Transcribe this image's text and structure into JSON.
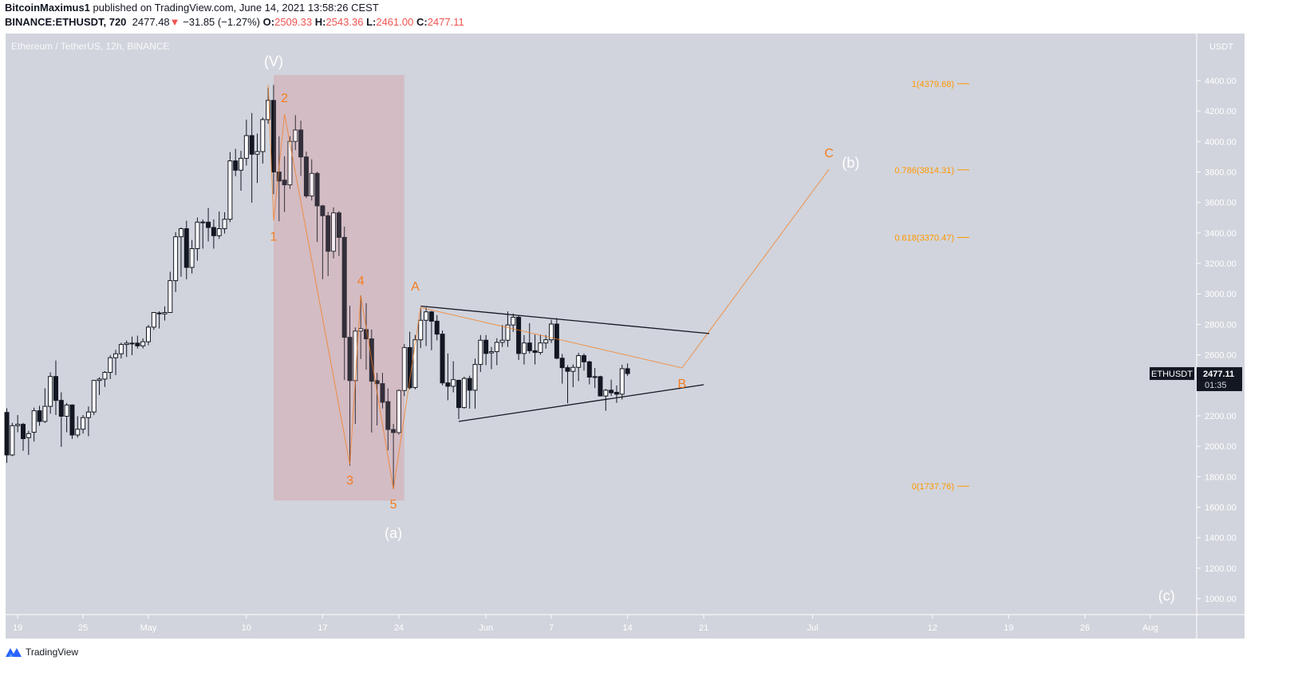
{
  "header": {
    "author": "BitcoinMaximus1",
    "published": "published on TradingView.com, June 14, 2021 13:58:26 CEST",
    "symbol": "BINANCE:ETHUSDT, 720",
    "last": "2477.48",
    "change": "−31.85 (−1.27%)",
    "direction_icon": "triangle-down-icon",
    "o_label": "O:",
    "o": "2509.33",
    "h_label": "H:",
    "h": "2543.36",
    "l_label": "L:",
    "l": "2461.00",
    "c_label": "C:",
    "c": "2477.11"
  },
  "footer": {
    "brand": "TradingView"
  },
  "colors": {
    "background": "#d1d4dc",
    "up_candle": "#ffffff",
    "down_candle": "#131722",
    "wave": "#f57c1f",
    "fib": "#ff9800",
    "box": "#d6c3c9",
    "axis_text": "#ffffff"
  },
  "chart_data": {
    "type": "candlestick",
    "title": "Ethereum / TetherUS, 12h, BINANCE",
    "interval": "12h",
    "y_unit": "USDT",
    "ylim": [
      850,
      4650
    ],
    "grid": false,
    "y_ticks": [
      "4400.00",
      "4200.00",
      "4000.00",
      "3800.00",
      "3600.00",
      "3400.00",
      "3200.00",
      "3000.00",
      "2800.00",
      "2600.00",
      "2200.00",
      "2000.00",
      "1800.00",
      "1600.00",
      "1400.00",
      "1200.00",
      "1000.00"
    ],
    "x_ticks": [
      {
        "label": "19",
        "date": "2021-04-19"
      },
      {
        "label": "25",
        "date": "2021-04-25"
      },
      {
        "label": "May",
        "date": "2021-05-01"
      },
      {
        "label": "10",
        "date": "2021-05-10"
      },
      {
        "label": "17",
        "date": "2021-05-17"
      },
      {
        "label": "24",
        "date": "2021-05-24"
      },
      {
        "label": "Jun",
        "date": "2021-06-01"
      },
      {
        "label": "7",
        "date": "2021-06-07"
      },
      {
        "label": "14",
        "date": "2021-06-14"
      },
      {
        "label": "21",
        "date": "2021-06-21"
      },
      {
        "label": "Jul",
        "date": "2021-07-01"
      },
      {
        "label": "12",
        "date": "2021-07-12"
      },
      {
        "label": "19",
        "date": "2021-07-19"
      },
      {
        "label": "26",
        "date": "2021-07-26"
      },
      {
        "label": "Aug",
        "date": "2021-08-01"
      }
    ],
    "ohlc": [
      [
        2222,
        2249,
        1891,
        1943
      ],
      [
        1943,
        2153,
        1935,
        2135
      ],
      [
        2135,
        2205,
        2092,
        2144
      ],
      [
        2144,
        2153,
        1970,
        2050
      ],
      [
        2057,
        2101,
        1943,
        2083
      ],
      [
        2092,
        2254,
        2031,
        2233
      ],
      [
        2233,
        2266,
        2135,
        2163
      ],
      [
        2163,
        2380,
        2153,
        2262
      ],
      [
        2262,
        2485,
        2214,
        2458
      ],
      [
        2458,
        2563,
        2205,
        2301
      ],
      [
        2301,
        2354,
        1996,
        2197
      ],
      [
        2197,
        2284,
        2092,
        2271
      ],
      [
        2271,
        2275,
        2048,
        2074
      ],
      [
        2074,
        2197,
        2057,
        2112
      ],
      [
        2112,
        2205,
        2083,
        2188
      ],
      [
        2188,
        2261,
        2066,
        2225
      ],
      [
        2225,
        2436,
        2205,
        2432
      ],
      [
        2432,
        2453,
        2336,
        2441
      ],
      [
        2441,
        2493,
        2389,
        2485
      ],
      [
        2485,
        2598,
        2441,
        2581
      ],
      [
        2581,
        2633,
        2467,
        2607
      ],
      [
        2607,
        2680,
        2576,
        2668
      ],
      [
        2668,
        2694,
        2586,
        2677
      ],
      [
        2677,
        2720,
        2598,
        2674
      ],
      [
        2677,
        2726,
        2642,
        2659
      ],
      [
        2659,
        2708,
        2642,
        2686
      ],
      [
        2686,
        2796,
        2663,
        2782
      ],
      [
        2782,
        2878,
        2764,
        2878
      ],
      [
        2875,
        2886,
        2773,
        2869
      ],
      [
        2869,
        2918,
        2825,
        2878
      ],
      [
        2878,
        3145,
        2878,
        3087
      ],
      [
        3087,
        3405,
        3012,
        3375
      ],
      [
        3375,
        3436,
        3113,
        3428
      ],
      [
        3428,
        3480,
        3096,
        3174
      ],
      [
        3174,
        3354,
        3134,
        3297
      ],
      [
        3297,
        3501,
        3218,
        3471
      ],
      [
        3470,
        3489,
        3297,
        3472
      ],
      [
        3471,
        3564,
        3344,
        3436
      ],
      [
        3436,
        3489,
        3297,
        3382
      ],
      [
        3382,
        3541,
        3361,
        3428
      ],
      [
        3428,
        3536,
        3396,
        3490
      ],
      [
        3490,
        3931,
        3471,
        3873
      ],
      [
        3873,
        3952,
        3773,
        3812
      ],
      [
        3812,
        3939,
        3677,
        3890
      ],
      [
        3890,
        4144,
        3843,
        4039
      ],
      [
        4039,
        4187,
        3599,
        3917
      ],
      [
        3917,
        4053,
        3728,
        3934
      ],
      [
        3934,
        4158,
        3856,
        4144
      ],
      [
        4144,
        4353,
        4117,
        4270
      ],
      [
        4270,
        4372,
        3655,
        3800
      ],
      [
        3800,
        4035,
        3477,
        3741
      ],
      [
        3747,
        3903,
        3538,
        3716
      ],
      [
        3716,
        4035,
        3690,
        4001
      ],
      [
        4001,
        4173,
        3944,
        4076
      ],
      [
        4076,
        4137,
        3775,
        3899
      ],
      [
        3899,
        3934,
        3629,
        3643
      ],
      [
        3643,
        3883,
        3613,
        3791
      ],
      [
        3791,
        3802,
        3341,
        3578
      ],
      [
        3578,
        3584,
        3097,
        3513
      ],
      [
        3513,
        3538,
        3117,
        3280
      ],
      [
        3280,
        3568,
        3233,
        3532
      ],
      [
        3532,
        3544,
        3249,
        3371
      ],
      [
        3371,
        3442,
        2435,
        2715
      ],
      [
        2715,
        2922,
        1873,
        2431
      ],
      [
        2431,
        2780,
        2147,
        2756
      ],
      [
        2756,
        2989,
        2573,
        2772
      ],
      [
        2766,
        2939,
        2502,
        2705
      ],
      [
        2705,
        2766,
        2090,
        2427
      ],
      [
        2431,
        2482,
        2137,
        2411
      ],
      [
        2411,
        2482,
        2248,
        2289
      ],
      [
        2293,
        2380,
        1974,
        2110
      ],
      [
        2110,
        2147,
        1720,
        2090
      ],
      [
        2090,
        2374,
        2076,
        2366
      ],
      [
        2366,
        2671,
        2329,
        2648
      ],
      [
        2648,
        2752,
        2374,
        2384
      ],
      [
        2386,
        2731,
        2374,
        2699
      ],
      [
        2699,
        2908,
        2644,
        2827
      ],
      [
        2827,
        2911,
        2658,
        2882
      ],
      [
        2882,
        2888,
        2630,
        2821
      ],
      [
        2821,
        2861,
        2695,
        2736
      ],
      [
        2736,
        2760,
        2400,
        2416
      ],
      [
        2416,
        2609,
        2302,
        2394
      ],
      [
        2394,
        2558,
        2354,
        2437
      ],
      [
        2433,
        2437,
        2178,
        2254
      ],
      [
        2254,
        2457,
        2247,
        2445
      ],
      [
        2445,
        2463,
        2247,
        2368
      ],
      [
        2368,
        2575,
        2247,
        2537
      ],
      [
        2537,
        2730,
        2488,
        2696
      ],
      [
        2696,
        2730,
        2532,
        2609
      ],
      [
        2613,
        2652,
        2506,
        2621
      ],
      [
        2621,
        2709,
        2532,
        2682
      ],
      [
        2682,
        2796,
        2652,
        2696
      ],
      [
        2696,
        2885,
        2652,
        2796
      ],
      [
        2796,
        2871,
        2751,
        2847
      ],
      [
        2847,
        2859,
        2566,
        2609
      ],
      [
        2609,
        2730,
        2537,
        2678
      ],
      [
        2678,
        2808,
        2609,
        2627
      ],
      [
        2627,
        2733,
        2537,
        2616
      ],
      [
        2616,
        2733,
        2601,
        2678
      ],
      [
        2678,
        2730,
        2640,
        2699
      ],
      [
        2699,
        2830,
        2678,
        2802
      ],
      [
        2802,
        2842,
        2571,
        2578
      ],
      [
        2578,
        2606,
        2411,
        2516
      ],
      [
        2516,
        2532,
        2282,
        2492
      ],
      [
        2492,
        2537,
        2388,
        2518
      ],
      [
        2518,
        2613,
        2428,
        2595
      ],
      [
        2595,
        2609,
        2497,
        2554
      ],
      [
        2554,
        2561,
        2406,
        2454
      ],
      [
        2457,
        2514,
        2382,
        2454
      ],
      [
        2457,
        2463,
        2330,
        2330
      ],
      [
        2330,
        2376,
        2233,
        2368
      ],
      [
        2368,
        2437,
        2330,
        2351
      ],
      [
        2354,
        2399,
        2285,
        2342
      ],
      [
        2342,
        2535,
        2307,
        2509
      ],
      [
        2509.33,
        2543.36,
        2461,
        2477.11
      ]
    ],
    "last_price": {
      "symbol": "ETHUSDT",
      "price": "2477.11",
      "countdown": "01:35"
    },
    "annotations": {
      "box": {
        "from": "2021-05-12 12:00",
        "to": "2021-05-24 12:00",
        "top": 4437,
        "bottom": 1644
      },
      "wave_path": [
        {
          "date": "2021-05-12 00:00",
          "price": 4372
        },
        {
          "date": "2021-05-12 12:00",
          "price": 3480
        },
        {
          "date": "2021-05-13 12:00",
          "price": 4180
        },
        {
          "date": "2021-05-19 12:00",
          "price": 1880
        },
        {
          "date": "2021-05-20 12:00",
          "price": 2990
        },
        {
          "date": "2021-05-23 12:00",
          "price": 1720
        },
        {
          "date": "2021-05-26 00:00",
          "price": 2911
        },
        {
          "date": "2021-06-19 00:00",
          "price": 2514
        },
        {
          "date": "2021-07-02 12:00",
          "price": 3818
        }
      ],
      "trendlines": [
        {
          "from": {
            "date": "2021-05-26 00:00",
            "price": 2920
          },
          "to": {
            "date": "2021-06-21 12:00",
            "price": 2740
          }
        },
        {
          "from": {
            "date": "2021-05-29 12:00",
            "price": 2163
          },
          "to": {
            "date": "2021-06-21 00:00",
            "price": 2404
          }
        }
      ],
      "labels": [
        {
          "text": "(V)",
          "date": "2021-05-12 12:00",
          "price": 4520,
          "color": "#ffffff"
        },
        {
          "text": "1",
          "date": "2021-05-12 12:00",
          "price": 3373,
          "color": "#f57c1f"
        },
        {
          "text": "2",
          "date": "2021-05-13 12:00",
          "price": 4280,
          "color": "#f57c1f"
        },
        {
          "text": "3",
          "date": "2021-05-19 12:00",
          "price": 1770,
          "color": "#f57c1f"
        },
        {
          "text": "4",
          "date": "2021-05-20 12:00",
          "price": 3080,
          "color": "#f57c1f"
        },
        {
          "text": "5",
          "date": "2021-05-23 12:00",
          "price": 1613,
          "color": "#f57c1f"
        },
        {
          "text": "(a)",
          "date": "2021-05-23 12:00",
          "price": 1424,
          "color": "#ffffff"
        },
        {
          "text": "A",
          "date": "2021-05-25 12:00",
          "price": 3043,
          "color": "#f57c1f"
        },
        {
          "text": "B",
          "date": "2021-06-19 00:00",
          "price": 2404,
          "color": "#f57c1f"
        },
        {
          "text": "C",
          "date": "2021-07-02 12:00",
          "price": 3918,
          "color": "#f57c1f"
        },
        {
          "text": "(b)",
          "date": "2021-07-04 12:00",
          "price": 3855,
          "color": "#ffffff"
        },
        {
          "text": "(c)",
          "date": "2021-08-02 12:00",
          "price": 1011,
          "color": "#ffffff"
        }
      ],
      "fib_levels": [
        {
          "label": "1(4379.68)",
          "price": 4379.68
        },
        {
          "label": "0.786(3814.31)",
          "price": 3814.31
        },
        {
          "label": "0.618(3370.47)",
          "price": 3370.47
        },
        {
          "label": "0(1737.76)",
          "price": 1737.76
        }
      ]
    }
  }
}
